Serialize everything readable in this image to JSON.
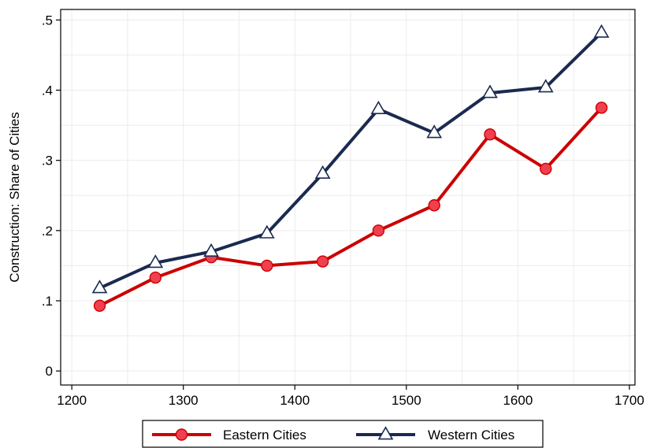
{
  "chart_data": {
    "type": "line",
    "title": "",
    "xlabel": "",
    "ylabel": "Construction: Share of Cities",
    "xlim": [
      1190,
      1705
    ],
    "ylim": [
      -0.02,
      0.515
    ],
    "x_ticks": [
      1200,
      1300,
      1400,
      1500,
      1600,
      1700
    ],
    "x_tick_labels": [
      "1200",
      "1300",
      "1400",
      "1500",
      "1600",
      "1700"
    ],
    "y_ticks": [
      0,
      0.1,
      0.2,
      0.3,
      0.4,
      0.5
    ],
    "y_tick_labels": [
      "0",
      ".1",
      ".2",
      ".3",
      ".4",
      ".5"
    ],
    "grid": true,
    "legend_position": "bottom",
    "x": [
      1225,
      1275,
      1325,
      1375,
      1425,
      1475,
      1525,
      1575,
      1625,
      1675
    ],
    "series": [
      {
        "name": "Eastern Cities",
        "color": "#cc0000",
        "marker": "circle",
        "marker_fill": "#f04050",
        "values": [
          0.093,
          0.133,
          0.162,
          0.15,
          0.156,
          0.2,
          0.236,
          0.337,
          0.288,
          0.375
        ]
      },
      {
        "name": "Western Cities",
        "color": "#1a2a50",
        "marker": "triangle",
        "marker_fill": "#ffffff",
        "values": [
          0.118,
          0.154,
          0.17,
          0.196,
          0.281,
          0.373,
          0.339,
          0.396,
          0.404,
          0.482
        ]
      }
    ]
  }
}
